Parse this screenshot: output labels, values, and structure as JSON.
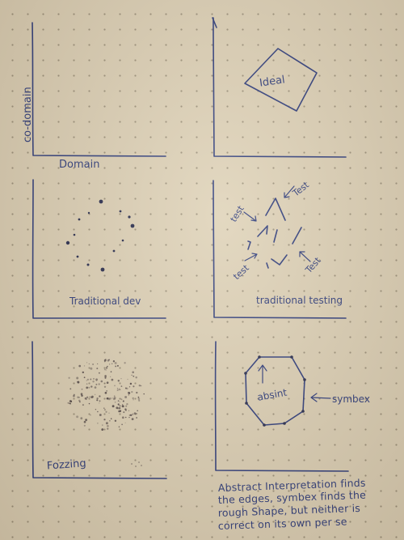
{
  "panels": {
    "axes": {
      "y_label": "co-domain",
      "x_label": "Domain"
    },
    "ideal": {
      "label": "Ideal"
    },
    "traditional_dev": {
      "label": "Traditional dev"
    },
    "traditional_testing": {
      "label": "traditional testing",
      "test_labels": [
        "test",
        "Test",
        "test",
        "Test"
      ]
    },
    "fuzzing": {
      "label": "Fozzing"
    },
    "abstract": {
      "inner_label": "absint",
      "side_label": "symbex"
    }
  },
  "note": {
    "lines": [
      "Abstract Interpretation finds",
      "the edges, symbex finds the",
      "rough Shape, but neither is",
      "correct on its own per se"
    ]
  },
  "colors": {
    "ink": "#25357a",
    "paper": "#ddd1b8",
    "pencil_dots": "#3a3035"
  }
}
